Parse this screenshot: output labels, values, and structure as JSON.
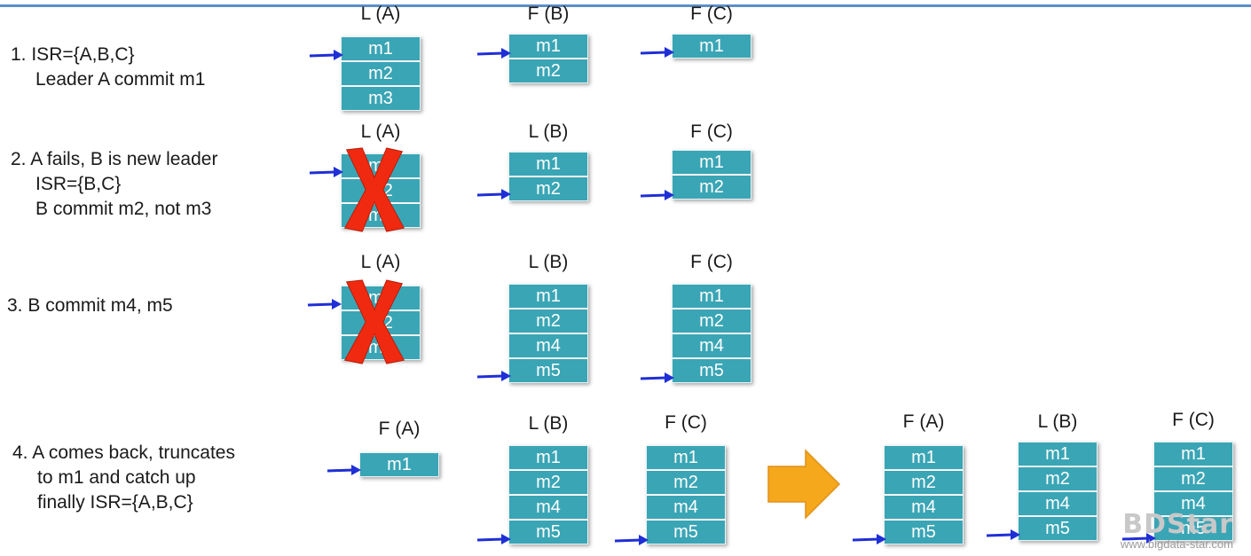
{
  "steps": [
    {
      "lines": [
        "1. ISR={A,B,C}",
        "Leader A commit m1"
      ]
    },
    {
      "lines": [
        "2. A fails, B is new leader",
        "ISR={B,C}",
        "B commit m2, not m3"
      ]
    },
    {
      "lines": [
        "3. B commit m4, m5"
      ]
    },
    {
      "lines": [
        "4. A comes back, truncates",
        "to m1 and catch up",
        "finally ISR={A,B,C}"
      ]
    }
  ],
  "nodes": {
    "s1": [
      {
        "label": "L (A)",
        "messages": [
          "m1",
          "m2",
          "m3"
        ],
        "failed": false
      },
      {
        "label": "F (B)",
        "messages": [
          "m1",
          "m2"
        ],
        "failed": false
      },
      {
        "label": "F (C)",
        "messages": [
          "m1"
        ],
        "failed": false
      }
    ],
    "s2": [
      {
        "label": "L (A)",
        "messages": [
          "m1",
          "m2",
          "m3"
        ],
        "failed": true
      },
      {
        "label": "L (B)",
        "messages": [
          "m1",
          "m2"
        ],
        "failed": false
      },
      {
        "label": "F (C)",
        "messages": [
          "m1",
          "m2"
        ],
        "failed": false
      }
    ],
    "s3": [
      {
        "label": "L (A)",
        "messages": [
          "m1",
          "m2",
          "m3"
        ],
        "failed": true
      },
      {
        "label": "L (B)",
        "messages": [
          "m1",
          "m2",
          "m4",
          "m5"
        ],
        "failed": false
      },
      {
        "label": "F (C)",
        "messages": [
          "m1",
          "m2",
          "m4",
          "m5"
        ],
        "failed": false
      }
    ],
    "s4_before": [
      {
        "label": "F (A)",
        "messages": [
          "m1"
        ],
        "failed": false
      },
      {
        "label": "L (B)",
        "messages": [
          "m1",
          "m2",
          "m4",
          "m5"
        ],
        "failed": false
      },
      {
        "label": "F (C)",
        "messages": [
          "m1",
          "m2",
          "m4",
          "m5"
        ],
        "failed": false
      }
    ],
    "s4_after": [
      {
        "label": "F (A)",
        "messages": [
          "m1",
          "m2",
          "m4",
          "m5"
        ],
        "failed": false
      },
      {
        "label": "L (B)",
        "messages": [
          "m1",
          "m2",
          "m4",
          "m5"
        ],
        "failed": false
      },
      {
        "label": "F (C)",
        "messages": [
          "m1",
          "m2",
          "m4",
          "m5"
        ],
        "failed": false
      }
    ]
  },
  "watermark": {
    "logo": "BDStar",
    "url": "www.bigdata-star.com"
  },
  "colors": {
    "cell": "#3aa5b5",
    "pointer": "#1f2fd6",
    "cross": "#f02a10",
    "transition_arrow": "#f5a81c",
    "top_rule": "#5b8fc7"
  },
  "icons": {
    "pointer": "blue-arrow-icon",
    "failure": "red-x-icon",
    "transition": "orange-right-arrow-icon"
  }
}
